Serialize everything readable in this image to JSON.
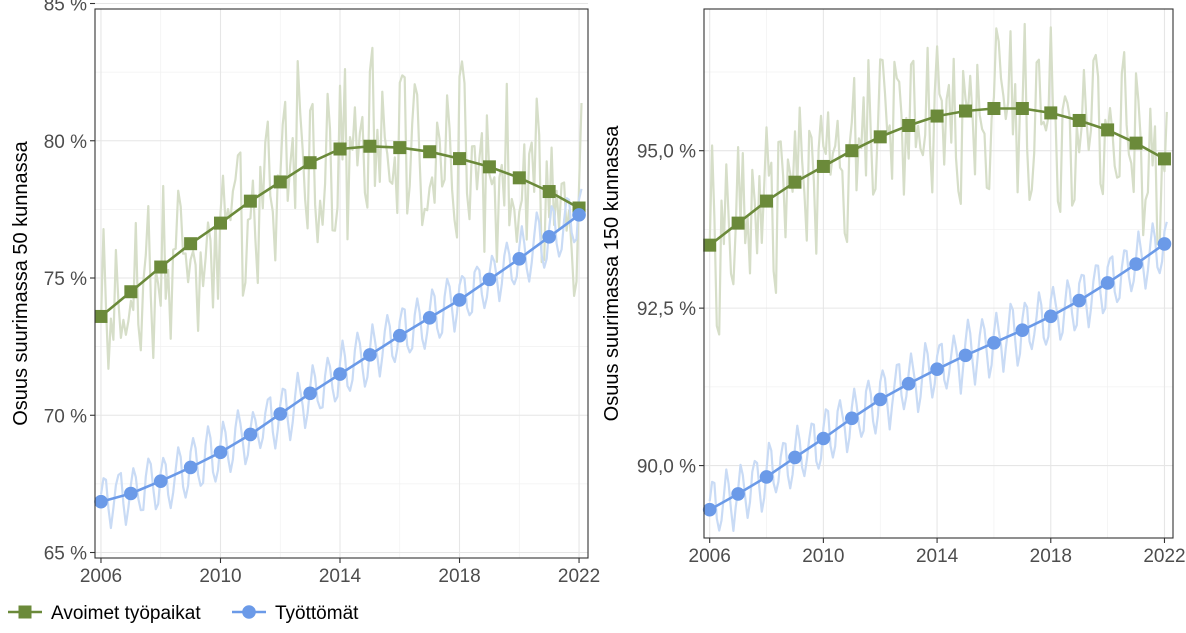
{
  "chart_data": {
    "type": "line",
    "colors": {
      "avoimet": "#6b8a3a",
      "avoimet_light": "#d6dec8",
      "tyottomat": "#6b9ae8",
      "tyottomat_light": "#c9dbf5"
    },
    "legend": {
      "position": "bottom-left",
      "items": [
        {
          "name": "Avoimet työpaikat",
          "marker": "square",
          "color": "#6b8a3a"
        },
        {
          "name": "Työttömät",
          "marker": "circle",
          "color": "#6b9ae8"
        }
      ]
    },
    "panels": [
      {
        "ylabel": "Osuus suurimassa 50 kunnassa",
        "xlim": [
          2005.8,
          2022.3
        ],
        "ylim": [
          64.8,
          84.8
        ],
        "xticks": [
          2006,
          2010,
          2014,
          2018,
          2022
        ],
        "xtick_labels": [
          "2006",
          "2010",
          "2014",
          "2018",
          "2022"
        ],
        "yticks": [
          65,
          70,
          75,
          80,
          85
        ],
        "ytick_labels": [
          "65 %",
          "70 %",
          "75 %",
          "80 %",
          "85 %"
        ],
        "grid": true,
        "series": [
          {
            "name": "Avoimet työpaikat",
            "x": [
              2006,
              2007,
              2008,
              2009,
              2010,
              2011,
              2012,
              2013,
              2014,
              2015,
              2016,
              2017,
              2018,
              2019,
              2020,
              2021,
              2022
            ],
            "values": [
              73.6,
              74.5,
              75.4,
              76.25,
              77.0,
              77.8,
              78.5,
              79.2,
              79.7,
              79.8,
              79.75,
              79.6,
              79.35,
              79.05,
              78.65,
              78.15,
              77.55
            ]
          },
          {
            "name": "Työttömät",
            "x": [
              2006,
              2007,
              2008,
              2009,
              2010,
              2011,
              2012,
              2013,
              2014,
              2015,
              2016,
              2017,
              2018,
              2019,
              2020,
              2021,
              2022
            ],
            "values": [
              66.85,
              67.15,
              67.6,
              68.1,
              68.65,
              69.3,
              70.05,
              70.8,
              71.5,
              72.2,
              72.9,
              73.55,
              74.2,
              74.95,
              75.7,
              76.5,
              77.3
            ]
          }
        ]
      },
      {
        "ylabel": "Osuus suurimassa 150 kunnassa",
        "xlim": [
          2005.8,
          2022.3
        ],
        "ylim": [
          88.85,
          97.25
        ],
        "xticks": [
          2006,
          2010,
          2014,
          2018,
          2022
        ],
        "xtick_labels": [
          "2006",
          "2010",
          "2014",
          "2018",
          "2022"
        ],
        "yticks": [
          90,
          92.5,
          95
        ],
        "ytick_labels": [
          "90,0 %",
          "92,5 %",
          "95,0 %"
        ],
        "grid": true,
        "series": [
          {
            "name": "Avoimet työpaikat",
            "x": [
              2006,
              2007,
              2008,
              2009,
              2010,
              2011,
              2012,
              2013,
              2014,
              2015,
              2016,
              2017,
              2018,
              2019,
              2020,
              2021,
              2022
            ],
            "values": [
              93.5,
              93.85,
              94.2,
              94.5,
              94.75,
              95.0,
              95.22,
              95.4,
              95.55,
              95.63,
              95.67,
              95.67,
              95.6,
              95.48,
              95.33,
              95.12,
              94.87
            ]
          },
          {
            "name": "Työttömät",
            "x": [
              2006,
              2007,
              2008,
              2009,
              2010,
              2011,
              2012,
              2013,
              2014,
              2015,
              2016,
              2017,
              2018,
              2019,
              2020,
              2021,
              2022
            ],
            "values": [
              89.3,
              89.55,
              89.82,
              90.13,
              90.43,
              90.75,
              91.05,
              91.3,
              91.53,
              91.75,
              91.95,
              92.15,
              92.37,
              92.62,
              92.9,
              93.2,
              93.52
            ]
          }
        ]
      }
    ]
  }
}
